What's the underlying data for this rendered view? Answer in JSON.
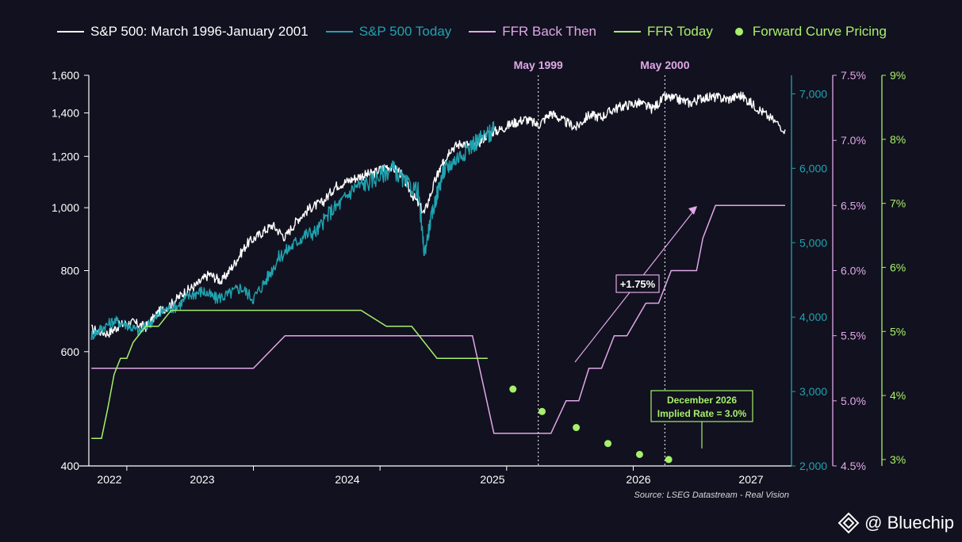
{
  "legend": [
    {
      "label": "S&P 500: March 1996-January 2001",
      "color": "#ffffff",
      "kind": "line"
    },
    {
      "label": "S&P 500 Today",
      "color": "#1fa3b0",
      "kind": "line"
    },
    {
      "label": "FFR Back Then",
      "color": "#e0a8e8",
      "kind": "line"
    },
    {
      "label": "FFR Today",
      "color": "#a6f06a",
      "kind": "line"
    },
    {
      "label": "Forward Curve Pricing",
      "color": "#a6f06a",
      "kind": "dot"
    }
  ],
  "source": "Source: LSEG Datastream - Real Vision",
  "brand": "@ Bluechip",
  "chart_data": {
    "type": "line",
    "x_axis": {
      "tick_labels": [
        "2022",
        "2023",
        "2024",
        "2025",
        "2026",
        "2027"
      ],
      "range_years": [
        2021.95,
        2027.5
      ]
    },
    "axes": {
      "sp_then": {
        "position": "left",
        "scale": "log",
        "range": [
          400,
          1600
        ],
        "tick_labels": [
          "400",
          "600",
          "800",
          "1,000",
          "1,200",
          "1,400",
          "1,600"
        ],
        "tick_values": [
          400,
          600,
          800,
          1000,
          1200,
          1400,
          1600
        ],
        "color": "#ffffff"
      },
      "sp_today": {
        "position": "right-1",
        "range": [
          2000,
          7250
        ],
        "tick_labels": [
          "2,000",
          "3,000",
          "4,000",
          "5,000",
          "6,000",
          "7,000"
        ],
        "tick_values": [
          2000,
          3000,
          4000,
          5000,
          6000,
          7000
        ],
        "color": "#1fa3b0"
      },
      "ffr_then": {
        "position": "right-2",
        "range": [
          4.5,
          7.5
        ],
        "tick_labels": [
          "4.5%",
          "5.0%",
          "5.5%",
          "6.0%",
          "6.5%",
          "7.0%",
          "7.5%"
        ],
        "tick_values": [
          4.5,
          5.0,
          5.5,
          6.0,
          6.5,
          7.0,
          7.5
        ],
        "color": "#e0a8e8"
      },
      "ffr_today": {
        "position": "right-3",
        "range": [
          2.9,
          9.0
        ],
        "tick_labels": [
          "3%",
          "4%",
          "5%",
          "6%",
          "7%",
          "8%",
          "9%"
        ],
        "tick_values": [
          3,
          4,
          5,
          6,
          7,
          8,
          9
        ],
        "color": "#a6f06a"
      }
    },
    "series": [
      {
        "name": "S&P 500: March 1996-January 2001",
        "axis": "sp_then",
        "color": "#ffffff",
        "x": [
          2021.97,
          2022.1,
          2022.2,
          2022.3,
          2022.4,
          2022.5,
          2022.6,
          2022.7,
          2022.8,
          2022.9,
          2023.0,
          2023.1,
          2023.2,
          2023.3,
          2023.4,
          2023.5,
          2023.6,
          2023.7,
          2023.8,
          2023.9,
          2024.0,
          2024.1,
          2024.2,
          2024.3,
          2024.4,
          2024.5,
          2024.6,
          2024.7,
          2024.75,
          2024.8,
          2024.9,
          2025.0,
          2025.1,
          2025.2,
          2025.3,
          2025.4,
          2025.5,
          2025.6,
          2025.7,
          2025.8,
          2025.9,
          2026.0,
          2026.1,
          2026.2,
          2026.3,
          2026.4,
          2026.5,
          2026.6,
          2026.7,
          2026.8,
          2026.9,
          2027.0,
          2027.1,
          2027.2,
          2027.3,
          2027.45
        ],
        "y": [
          650,
          640,
          660,
          665,
          655,
          690,
          710,
          740,
          760,
          790,
          770,
          820,
          880,
          910,
          940,
          900,
          960,
          1000,
          1020,
          1080,
          1100,
          1120,
          1130,
          1160,
          1140,
          1050,
          980,
          1120,
          1170,
          1230,
          1260,
          1240,
          1300,
          1320,
          1350,
          1370,
          1340,
          1400,
          1360,
          1330,
          1390,
          1380,
          1420,
          1440,
          1450,
          1420,
          1480,
          1470,
          1450,
          1480,
          1480,
          1470,
          1490,
          1440,
          1390,
          1320
        ]
      },
      {
        "name": "S&P 500 Today",
        "axis": "sp_today",
        "color": "#1fa3b0",
        "x": [
          2021.97,
          2022.05,
          2022.15,
          2022.25,
          2022.35,
          2022.45,
          2022.55,
          2022.65,
          2022.75,
          2022.85,
          2022.95,
          2023.05,
          2023.15,
          2023.25,
          2023.35,
          2023.45,
          2023.55,
          2023.65,
          2023.75,
          2023.85,
          2023.95,
          2024.05,
          2024.15,
          2024.25,
          2024.35,
          2024.45,
          2024.55,
          2024.6,
          2024.65,
          2024.7,
          2024.75,
          2024.8,
          2024.9,
          2025.0,
          2025.1,
          2025.15
        ],
        "y": [
          3750,
          3850,
          3950,
          3900,
          3800,
          3950,
          4100,
          4150,
          4300,
          4350,
          4250,
          4300,
          4400,
          4250,
          4500,
          4800,
          4950,
          5100,
          5150,
          5400,
          5550,
          5750,
          5800,
          5900,
          6000,
          5800,
          5700,
          4850,
          5300,
          5650,
          5950,
          6050,
          6200,
          6350,
          6450,
          6500
        ]
      },
      {
        "name": "FFR Back Then",
        "axis": "ffr_then",
        "color": "#e0a8e8",
        "step": true,
        "x": [
          2021.97,
          2022.25,
          2022.5,
          2022.75,
          2023.0,
          2023.25,
          2023.5,
          2023.75,
          2024.0,
          2024.25,
          2024.5,
          2024.75,
          2024.98,
          2025.15,
          2025.5,
          2025.6,
          2025.72,
          2025.82,
          2025.9,
          2026.0,
          2026.1,
          2026.2,
          2026.35,
          2026.45,
          2026.55,
          2026.6,
          2026.75,
          2026.8,
          2026.9,
          2027.45
        ],
        "y": [
          5.25,
          5.25,
          5.25,
          5.25,
          5.25,
          5.25,
          5.5,
          5.5,
          5.5,
          5.5,
          5.5,
          5.5,
          5.5,
          4.75,
          4.75,
          4.75,
          5.0,
          5.0,
          5.25,
          5.25,
          5.5,
          5.5,
          5.75,
          5.75,
          6.0,
          6.0,
          6.0,
          6.25,
          6.5,
          6.5
        ]
      },
      {
        "name": "FFR Today",
        "axis": "ffr_today",
        "color": "#a6f06a",
        "step": true,
        "x": [
          2021.97,
          2022.05,
          2022.1,
          2022.15,
          2022.2,
          2022.25,
          2022.3,
          2022.4,
          2022.5,
          2022.6,
          2022.7,
          2022.8,
          2022.9,
          2023.0,
          2023.1,
          2023.3,
          2023.5,
          2023.7,
          2023.9,
          2024.1,
          2024.3,
          2024.5,
          2024.7,
          2024.9,
          2025.1
        ],
        "y": [
          3.33,
          3.33,
          3.8,
          4.33,
          4.58,
          4.58,
          4.83,
          5.08,
          5.08,
          5.33,
          5.33,
          5.33,
          5.33,
          5.33,
          5.33,
          5.33,
          5.33,
          5.33,
          5.33,
          5.33,
          5.08,
          5.08,
          4.58,
          4.58,
          4.58
        ]
      },
      {
        "name": "Forward Curve Pricing",
        "axis": "ffr_today",
        "color": "#a6f06a",
        "markers_only": true,
        "x": [
          2025.3,
          2025.53,
          2025.8,
          2026.05,
          2026.3,
          2026.53
        ],
        "y": [
          4.1,
          3.75,
          3.5,
          3.25,
          3.08,
          3.0
        ]
      }
    ],
    "vlines": [
      {
        "x": 2025.5,
        "label": "May 1999"
      },
      {
        "x": 2026.5,
        "label": "May 2000"
      }
    ],
    "annotations": [
      {
        "text": "+1.75%",
        "kind": "arrow"
      },
      {
        "text": "December 2026\nImplied Rate = 3.0%",
        "kind": "callout"
      }
    ],
    "grid": false,
    "legend_position": "top"
  }
}
